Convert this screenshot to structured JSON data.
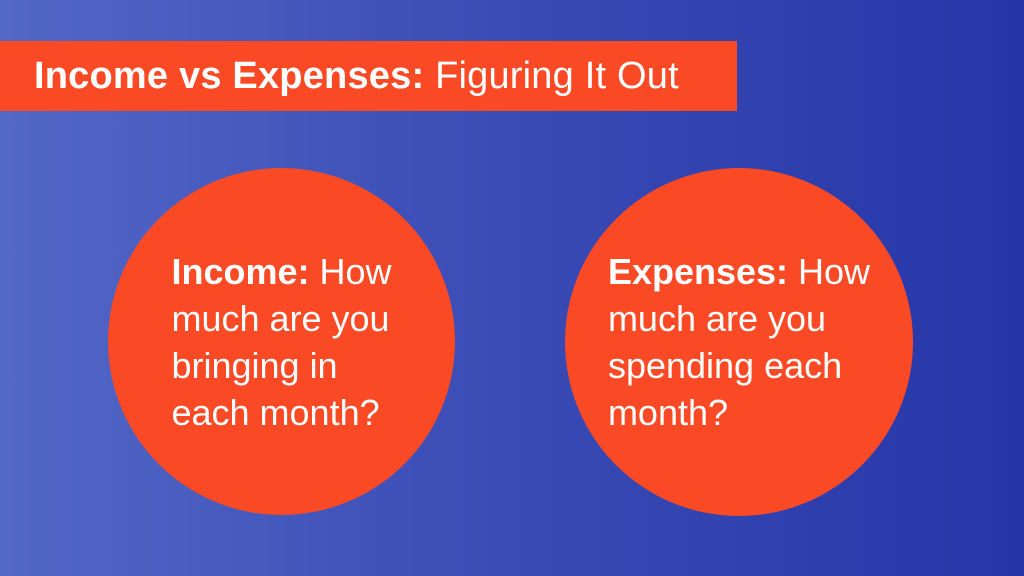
{
  "slide": {
    "title": {
      "bold": "Income vs Expenses:",
      "regular": " Figuring It Out"
    },
    "colors": {
      "accent_orange": "#FA4A25",
      "bg_gradient_left": "#5268C6",
      "bg_gradient_right": "#2636A8",
      "text_white": "#FFFFFF"
    }
  },
  "circles": [
    {
      "id": "income",
      "label_bold": "Income:",
      "line1_rest": " How",
      "line2": "much are you",
      "line3": "bringing in",
      "line4": "each month?",
      "full_text": "Income: How much are you bringing in each month?"
    },
    {
      "id": "expenses",
      "label_bold": "Expenses:",
      "line1_rest": " How",
      "line2": "much are you",
      "line3": "spending each",
      "line4": "month?",
      "full_text": "Expenses: How much are you spending each month?"
    }
  ]
}
